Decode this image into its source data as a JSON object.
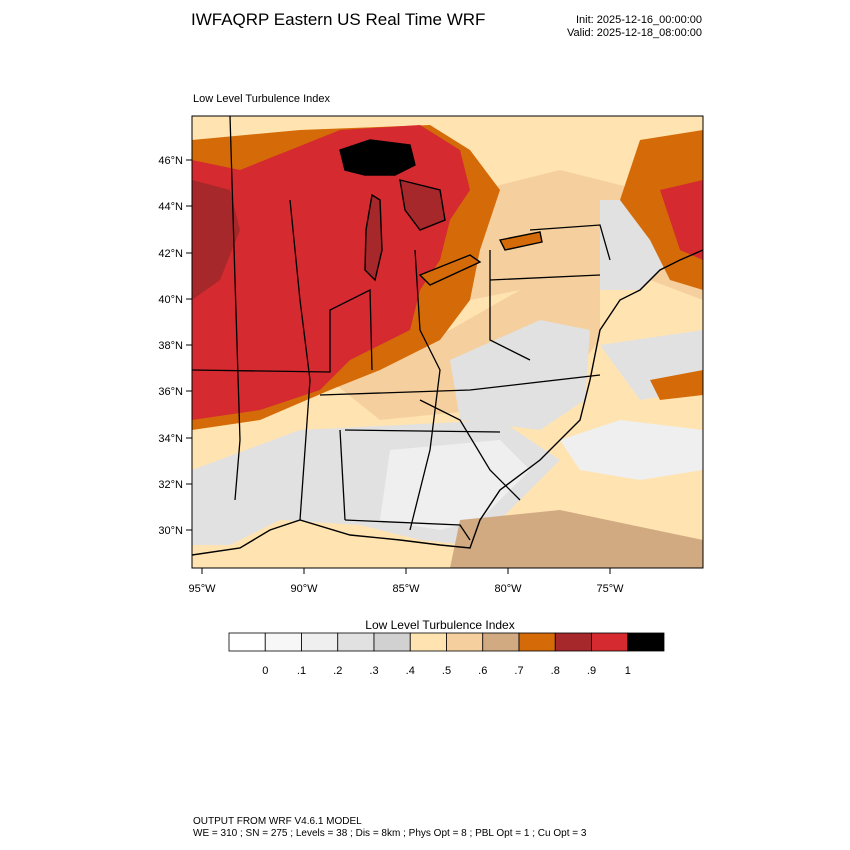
{
  "header": {
    "title": "IWFAQRP Eastern US Real Time WRF",
    "init": "Init: 2025-12-16_00:00:00",
    "valid": "Valid: 2025-12-18_08:00:00"
  },
  "map": {
    "field_label": "Low Level Turbulence Index",
    "lat_ticks": [
      "46°N",
      "44°N",
      "42°N",
      "40°N",
      "38°N",
      "36°N",
      "34°N",
      "32°N",
      "30°N"
    ],
    "lon_ticks": [
      "95°W",
      "90°W",
      "85°W",
      "80°W",
      "75°W"
    ]
  },
  "colorbar": {
    "title": "Low Level Turbulence Index",
    "colors": [
      "#ffffff",
      "#f7f7f7",
      "#efefef",
      "#e1e1e1",
      "#d1d1d1",
      "#ffe3b0",
      "#f5d09e",
      "#d1aa82",
      "#d46b08",
      "#a7282a",
      "#d42a30",
      "#000000"
    ],
    "labels": [
      "0",
      ".1",
      ".2",
      ".3",
      ".4",
      ".5",
      ".6",
      ".7",
      ".8",
      ".9",
      "1"
    ]
  },
  "footer": {
    "line1": "OUTPUT FROM WRF V4.6.1 MODEL",
    "line2": "WE = 310 ; SN = 275 ; Levels = 38 ; Dis = 8km ; Phys Opt = 8 ; PBL Opt = 1 ; Cu Opt = 3"
  }
}
